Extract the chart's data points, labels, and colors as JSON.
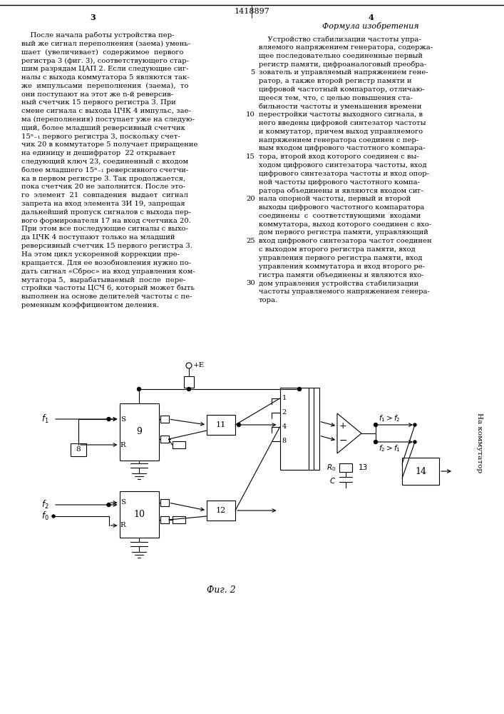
{
  "page_number_center": "1418897",
  "col_left_number": "3",
  "col_right_number": "4",
  "col_right_header": "Формула изобретения",
  "fig_caption": "Фиг. 2",
  "background_color": "#ffffff",
  "text_color": "#000000",
  "line_numbers": [
    "5",
    "10",
    "15",
    "20",
    "25",
    "30"
  ]
}
